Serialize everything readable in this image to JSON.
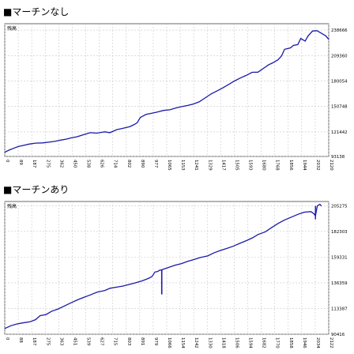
{
  "chart_data": [
    {
      "type": "line",
      "title": "■マーチンなし",
      "ylabel": "残高",
      "ylim": [
        93138,
        246000
      ],
      "yticks": [
        93138,
        121442,
        150748,
        180054,
        209360,
        238666
      ],
      "xticks": [
        "0",
        "89",
        "187",
        "275",
        "362",
        "450",
        "538",
        "626",
        "714",
        "802",
        "890",
        "977",
        "1065",
        "1153",
        "1241",
        "1329",
        "1417",
        "1505",
        "1593",
        "1680",
        "1768",
        "1856",
        "1944",
        "2032",
        "2120"
      ],
      "xlim": [
        0,
        2200
      ],
      "series": [
        {
          "x": [
            0,
            30,
            60,
            90,
            130,
            170,
            210,
            260,
            300,
            340,
            380,
            420,
            450,
            490,
            530,
            580,
            626,
            680,
            714,
            760,
            802,
            850,
            880,
            900,
            920,
            960,
            1000,
            1040,
            1080,
            1120,
            1160,
            1200,
            1240,
            1280,
            1320,
            1360,
            1400,
            1440,
            1480,
            1520,
            1560,
            1600,
            1640,
            1680,
            1720,
            1760,
            1790,
            1820,
            1856,
            1880,
            1900,
            1940,
            1960,
            1990,
            2010,
            2040,
            2060,
            2090,
            2120,
            2150,
            2180,
            2200
          ],
          "values": [
            98000,
            100500,
            102500,
            104500,
            106000,
            107500,
            108500,
            108800,
            109600,
            110500,
            112000,
            113200,
            114500,
            115800,
            118000,
            120500,
            120000,
            121500,
            120500,
            124000,
            125500,
            127500,
            130000,
            132000,
            138000,
            141500,
            143000,
            144500,
            146200,
            146800,
            148800,
            150500,
            151800,
            153500,
            156000,
            160500,
            165000,
            168500,
            172000,
            176000,
            180000,
            183500,
            186500,
            190000,
            190200,
            195000,
            198500,
            201000,
            204500,
            209000,
            216500,
            218200,
            221000,
            222000,
            229000,
            226000,
            232000,
            237500,
            238000,
            235000,
            232000,
            228000
          ]
        }
      ]
    },
    {
      "type": "line",
      "title": "■マーチンあり",
      "ylabel": "残高",
      "ylim": [
        90416,
        209000
      ],
      "yticks": [
        90416,
        113387,
        136359,
        159331,
        182303,
        205275
      ],
      "xticks": [
        "0",
        "88",
        "187",
        "275",
        "363",
        "451",
        "539",
        "627",
        "715",
        "803",
        "891",
        "979",
        "1066",
        "1154",
        "1242",
        "1330",
        "1418",
        "1506",
        "1594",
        "1682",
        "1770",
        "1858",
        "1946",
        "2034",
        "2122"
      ],
      "xlim": [
        0,
        2200
      ],
      "series": [
        {
          "x": [
            0,
            40,
            80,
            120,
            170,
            210,
            240,
            280,
            320,
            363,
            410,
            450,
            500,
            539,
            580,
            627,
            680,
            715,
            760,
            803,
            850,
            891,
            930,
            960,
            980,
            1000,
            1020,
            1040,
            1050,
            1066,
            1100,
            1154,
            1200,
            1242,
            1280,
            1330,
            1380,
            1418,
            1460,
            1506,
            1550,
            1594,
            1640,
            1682,
            1720,
            1770,
            1810,
            1858,
            1900,
            1946,
            1990,
            2034,
            2080,
            2100,
            2110,
            2122,
            2140,
            2150
          ],
          "values": [
            95500,
            98000,
            99500,
            100500,
            101500,
            103500,
            107000,
            108000,
            111000,
            113000,
            116000,
            118500,
            121500,
            123500,
            125500,
            128000,
            129500,
            131500,
            132500,
            133500,
            135000,
            136500,
            138000,
            139500,
            140500,
            142000,
            146000,
            146500,
            147500,
            148000,
            149500,
            152000,
            153500,
            155500,
            157000,
            159000,
            160500,
            163000,
            165000,
            167000,
            169000,
            171500,
            174000,
            176500,
            179500,
            182000,
            185500,
            189500,
            192500,
            195000,
            197500,
            199500,
            200000,
            198000,
            196000,
            205000,
            206500,
            205000
          ]
        }
      ]
    }
  ]
}
